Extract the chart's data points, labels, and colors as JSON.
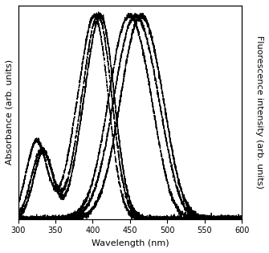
{
  "xlim": [
    300,
    600
  ],
  "ylim_abs": [
    0,
    1.05
  ],
  "ylim_fl": [
    0,
    1.05
  ],
  "xlabel": "Wavelength (nm)",
  "ylabel_left": "Absorbance (arb. units)",
  "ylabel_right": "Fluorescence intensity (arb. units)",
  "background_color": "#ffffff",
  "fontsize_label": 8,
  "fontsize_tick": 7,
  "xticks": [
    300,
    350,
    400,
    450,
    500,
    550,
    600
  ]
}
